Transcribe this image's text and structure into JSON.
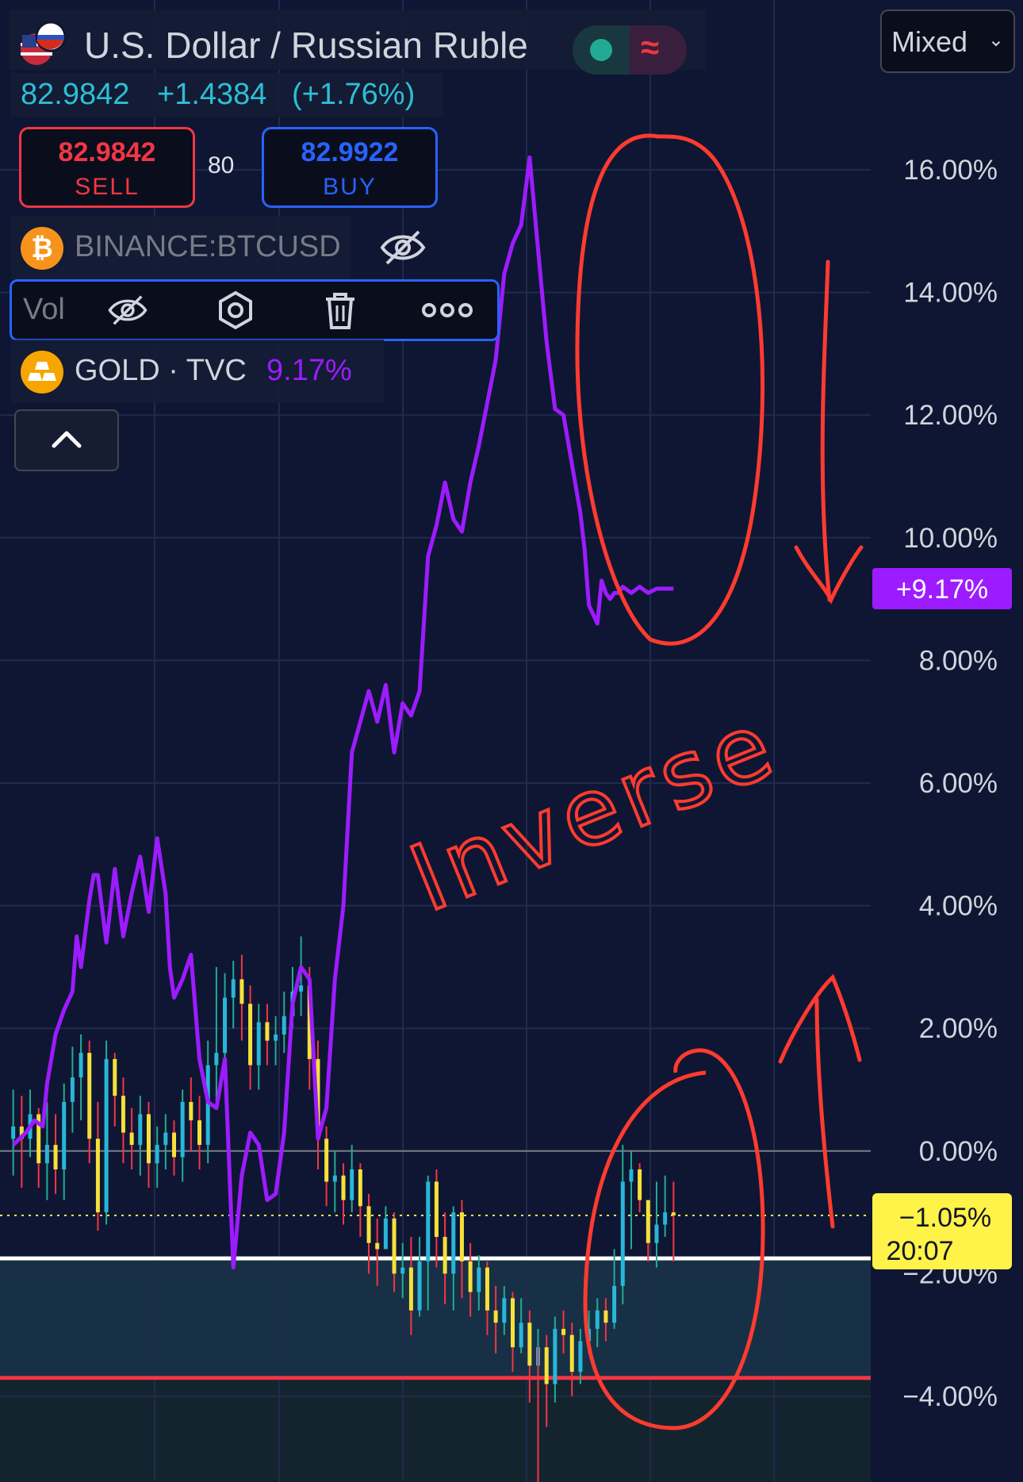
{
  "header": {
    "symbol": "U.S. Dollar / Russian Ruble",
    "price": "82.9842",
    "change": "+1.4384",
    "change_pct": "(+1.76%)",
    "flag_icon": "usd-rub-flag-icon",
    "mode_icons": [
      "market-dot-icon",
      "wave-icon"
    ]
  },
  "trade": {
    "sell_price": "82.9842",
    "sell_label": "SELL",
    "spread": "80",
    "buy_price": "82.9922",
    "buy_label": "BUY"
  },
  "indicators": {
    "btc_label": "BINANCE:BTCUSD",
    "vol_label": "Vol",
    "gold_label": "GOLD · TVC",
    "gold_value": "9.17%"
  },
  "controls": {
    "scale_mode": "Mixed"
  },
  "colors": {
    "background": "#0f1633",
    "gold_line": "#9c1cff",
    "candle_up": "#29b6d8",
    "candle_down": "#f5e13a",
    "wick_up": "#22ab94",
    "wick_down": "#f23645",
    "annotation": "#ff3b30",
    "last_badge": "#fff34a"
  },
  "chart_data": {
    "type": "line",
    "ylabel": "",
    "ylim": [
      -5.5,
      18.3
    ],
    "yticks": [
      "16.00%",
      "14.00%",
      "12.00%",
      "10.00%",
      "8.00%",
      "6.00%",
      "4.00%",
      "2.00%",
      "0.00%",
      "−2.00%",
      "−4.00%"
    ],
    "ytick_values": [
      16,
      14,
      12,
      10,
      8,
      6,
      4,
      2,
      0,
      -2,
      -4
    ],
    "series": [
      {
        "name": "GOLD · TVC",
        "x": [
          0,
          3,
          5,
          7,
          8,
          10,
          12,
          14,
          15,
          16,
          18,
          19,
          20,
          22,
          24,
          26,
          28,
          30,
          32,
          34,
          36,
          37,
          38,
          40,
          42,
          44,
          46,
          48,
          50,
          52,
          54,
          56,
          58,
          60,
          62,
          64,
          66,
          68,
          70,
          72,
          74,
          76,
          78,
          80,
          82,
          84,
          86,
          88,
          90,
          92,
          94,
          96,
          98,
          100,
          102,
          104,
          106,
          108,
          110,
          112,
          114,
          116,
          118,
          120,
          122,
          124,
          126,
          128,
          130,
          132,
          134,
          135,
          136,
          138,
          139,
          140,
          141,
          142,
          143,
          144,
          146,
          148,
          150,
          152,
          153,
          154,
          155,
          156
        ],
        "values": [
          0.1,
          0.3,
          0.5,
          0.4,
          1.1,
          1.9,
          2.3,
          2.6,
          3.5,
          3.0,
          4.1,
          4.5,
          4.5,
          3.4,
          4.6,
          3.5,
          4.2,
          4.8,
          3.9,
          5.1,
          4.2,
          3.0,
          2.5,
          2.8,
          3.2,
          1.5,
          0.8,
          0.7,
          1.5,
          -1.9,
          -0.4,
          0.3,
          0.1,
          -0.8,
          -0.7,
          0.3,
          2.4,
          3.0,
          2.8,
          0.2,
          0.7,
          2.8,
          4.0,
          6.5,
          7.0,
          7.5,
          7.0,
          7.6,
          6.5,
          7.3,
          7.1,
          7.5,
          9.7,
          10.2,
          10.9,
          10.3,
          10.1,
          10.9,
          11.5,
          12.2,
          12.9,
          14.3,
          14.8,
          15.1,
          16.2,
          14.7,
          13.2,
          12.1,
          12.0,
          11.2,
          10.4,
          9.8,
          8.9,
          8.6,
          9.3,
          9.1,
          9.0,
          9.1,
          9.1,
          9.2,
          9.1,
          9.2,
          9.1,
          9.17,
          9.17,
          9.17,
          9.17,
          9.17
        ]
      },
      {
        "name": "U.S. Dollar / Russian Ruble",
        "type": "candlestick",
        "x": [
          0,
          2,
          4,
          6,
          8,
          10,
          12,
          14,
          16,
          18,
          20,
          22,
          24,
          26,
          28,
          30,
          32,
          34,
          36,
          38,
          40,
          42,
          44,
          46,
          48,
          50,
          52,
          54,
          56,
          58,
          60,
          62,
          64,
          66,
          68,
          70,
          72,
          74,
          76,
          78,
          80,
          82,
          84,
          86,
          88,
          90,
          92,
          94,
          96,
          98,
          100,
          102,
          104,
          106,
          108,
          110,
          112,
          114,
          116,
          118,
          120,
          122,
          124,
          126,
          128,
          130,
          132,
          134,
          136,
          138,
          140,
          142,
          144,
          146,
          148,
          150,
          152,
          154,
          156
        ],
        "close": [
          0.4,
          0.2,
          0.6,
          -0.2,
          0.1,
          -0.3,
          0.8,
          1.2,
          1.6,
          0.2,
          -1.0,
          1.5,
          0.9,
          0.3,
          0.1,
          0.6,
          -0.2,
          0.1,
          0.3,
          -0.1,
          0.8,
          0.5,
          0.1,
          1.4,
          1.6,
          2.5,
          2.8,
          2.4,
          1.4,
          2.1,
          1.8,
          1.9,
          2.2,
          2.6,
          2.7,
          1.5,
          0.2,
          -0.5,
          -0.4,
          -0.8,
          -0.3,
          -0.9,
          -1.5,
          -1.6,
          -1.1,
          -2.0,
          -1.9,
          -2.6,
          -1.8,
          -0.5,
          -1.4,
          -2.0,
          -1.0,
          -1.8,
          -2.3,
          -1.9,
          -2.6,
          -2.8,
          -2.4,
          -3.2,
          -2.8,
          -3.5,
          -3.2,
          -3.8,
          -2.9,
          -3.0,
          -3.6,
          -3.1,
          -2.9,
          -2.6,
          -2.8,
          -2.2,
          -0.5,
          -0.3,
          -0.8,
          -1.5,
          -1.2,
          -1.0,
          -1.05
        ],
        "open": [
          0.2,
          0.4,
          0.2,
          0.6,
          -0.2,
          0.1,
          -0.3,
          0.8,
          1.2,
          1.6,
          0.2,
          -1.0,
          1.5,
          0.9,
          0.3,
          0.1,
          0.6,
          -0.2,
          0.1,
          0.3,
          -0.1,
          0.8,
          0.5,
          0.1,
          1.4,
          1.6,
          2.5,
          2.8,
          2.4,
          1.4,
          2.1,
          1.8,
          1.9,
          2.2,
          2.6,
          2.7,
          1.5,
          0.2,
          -0.5,
          -0.4,
          -0.8,
          -0.3,
          -0.9,
          -1.5,
          -1.6,
          -1.1,
          -2.0,
          -1.9,
          -2.6,
          -1.8,
          -0.5,
          -1.4,
          -2.0,
          -1.0,
          -1.8,
          -2.3,
          -1.9,
          -2.6,
          -2.8,
          -2.4,
          -3.2,
          -2.8,
          -3.5,
          -3.2,
          -3.8,
          -2.9,
          -3.0,
          -3.6,
          -3.1,
          -2.9,
          -2.6,
          -2.8,
          -2.2,
          -0.5,
          -0.3,
          -0.8,
          -1.5,
          -1.2,
          -1.0
        ],
        "high": [
          1.0,
          0.9,
          1.0,
          0.7,
          0.8,
          0.6,
          1.1,
          1.7,
          1.9,
          1.8,
          0.8,
          1.8,
          1.6,
          1.2,
          0.7,
          0.9,
          0.8,
          0.4,
          0.6,
          0.5,
          1.0,
          1.2,
          0.9,
          1.8,
          3.0,
          2.9,
          3.1,
          3.2,
          2.7,
          2.4,
          2.4,
          2.2,
          2.6,
          3.0,
          3.5,
          3.0,
          1.8,
          0.4,
          0.0,
          -0.2,
          0.1,
          -0.2,
          -0.7,
          -1.1,
          -0.9,
          -1.0,
          -1.5,
          -1.4,
          -1.4,
          -0.4,
          -0.3,
          -1.0,
          -0.9,
          -0.8,
          -1.5,
          -1.7,
          -1.8,
          -2.2,
          -2.2,
          -2.3,
          -2.4,
          -2.6,
          -2.9,
          -3.0,
          -2.7,
          -2.6,
          -2.8,
          -2.9,
          -2.6,
          -2.4,
          -2.4,
          -1.6,
          0.1,
          0.0,
          -0.2,
          -0.9,
          -0.5,
          -0.4,
          -0.5
        ],
        "low": [
          -0.4,
          -0.6,
          -0.1,
          -0.6,
          -0.8,
          -0.7,
          -0.8,
          0.3,
          0.5,
          -0.2,
          -1.3,
          -1.2,
          0.4,
          -0.2,
          -0.3,
          -0.4,
          -0.6,
          -0.6,
          -0.3,
          -0.4,
          -0.5,
          0.0,
          -0.3,
          -0.2,
          0.8,
          1.2,
          2.0,
          1.8,
          1.0,
          1.0,
          1.4,
          1.4,
          1.6,
          2.0,
          2.2,
          1.0,
          -0.3,
          -0.9,
          -1.0,
          -1.2,
          -1.0,
          -1.4,
          -2.0,
          -2.2,
          -1.6,
          -2.3,
          -2.4,
          -3.0,
          -2.7,
          -2.6,
          -1.9,
          -2.5,
          -2.6,
          -2.4,
          -2.7,
          -2.6,
          -3.0,
          -3.3,
          -3.0,
          -3.6,
          -3.3,
          -4.1,
          -3.8,
          -4.5,
          -4.1,
          -3.3,
          -4.0,
          -3.8,
          -3.3,
          -3.2,
          -3.1,
          -2.9,
          -2.5,
          -1.6,
          -1.0,
          -1.8,
          -1.9,
          -1.4,
          -1.8
        ]
      }
    ],
    "reference_lines": [
      {
        "value": 0,
        "style": "solid-gray"
      },
      {
        "value": -1.05,
        "style": "dotted-yellow"
      },
      {
        "value": -1.75,
        "style": "solid-white"
      },
      {
        "value": -3.7,
        "style": "solid-red"
      }
    ],
    "badges": [
      {
        "text": "+9.17%",
        "value": 9.17,
        "color": "#9c1cff"
      },
      {
        "text": "−1.05%",
        "subtext": "20:07",
        "value": -1.05,
        "color": "#fff34a"
      }
    ],
    "annotations": {
      "handwritten_text": "Inverse",
      "marks": [
        "circle-top-peak",
        "circle-bottom-rise",
        "arrow-down",
        "arrow-up"
      ]
    },
    "grid": true,
    "xlim": [
      -2,
      158
    ]
  }
}
